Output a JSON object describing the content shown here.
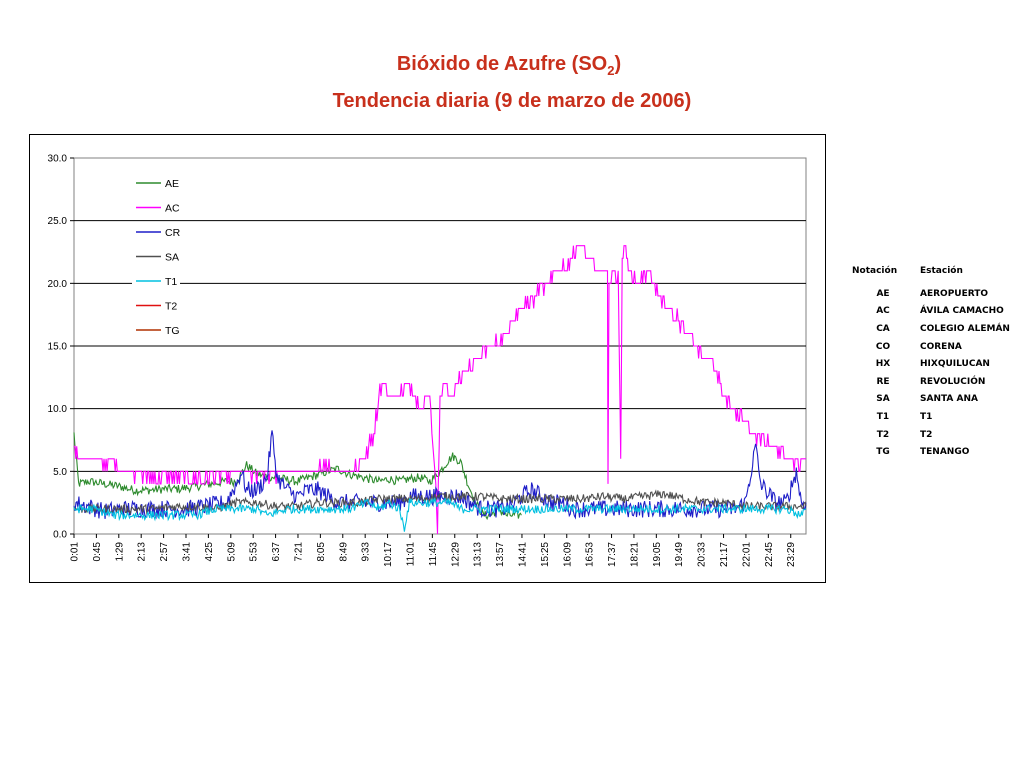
{
  "title": {
    "line1_prefix": "Bióxido de Azufre (SO",
    "line1_sub": "2",
    "line1_suffix": ")",
    "line2": "Tendencia diaria (9 de marzo de 2006)"
  },
  "chart_data": {
    "type": "line",
    "title": "Bióxido de Azufre (SO2) Tendencia diaria (9 de marzo de 2006)",
    "xlabel": "",
    "ylabel": "",
    "ylim": [
      0,
      30
    ],
    "yticks": [
      "0.0",
      "5.0",
      "10.0",
      "15.0",
      "20.0",
      "25.0",
      "30.0"
    ],
    "xtick_labels": [
      "0:01",
      "0:45",
      "1:29",
      "2:13",
      "2:57",
      "3:41",
      "4:25",
      "5:09",
      "5:53",
      "6:37",
      "7:21",
      "8:05",
      "8:49",
      "9:33",
      "10:17",
      "11:01",
      "11:45",
      "12:29",
      "13:13",
      "13:57",
      "14:41",
      "15:25",
      "16:09",
      "16:53",
      "17:37",
      "18:21",
      "19:05",
      "19:49",
      "20:33",
      "21:17",
      "22:01",
      "22:45",
      "23:29"
    ],
    "x_unit": "minutes since 0:00",
    "grid": "horizontal",
    "legend_position": "upper-left",
    "series": [
      {
        "name": "AE",
        "color": "#2e8b2e",
        "points": [
          [
            1,
            8
          ],
          [
            10,
            4
          ],
          [
            30,
            4.2
          ],
          [
            60,
            4
          ],
          [
            90,
            3.8
          ],
          [
            120,
            3.5
          ],
          [
            150,
            3.5
          ],
          [
            180,
            3.6
          ],
          [
            210,
            3.6
          ],
          [
            240,
            3.8
          ],
          [
            270,
            4
          ],
          [
            300,
            4.2
          ],
          [
            320,
            4.2
          ],
          [
            340,
            5.5
          ],
          [
            360,
            4.8
          ],
          [
            380,
            4.6
          ],
          [
            410,
            4.4
          ],
          [
            440,
            4.2
          ],
          [
            470,
            4.6
          ],
          [
            500,
            5
          ],
          [
            520,
            5.2
          ],
          [
            540,
            4.8
          ],
          [
            560,
            4.6
          ],
          [
            580,
            4.4
          ],
          [
            600,
            4.2
          ],
          [
            620,
            4.4
          ],
          [
            640,
            4.2
          ],
          [
            660,
            4.4
          ],
          [
            680,
            4.5
          ],
          [
            700,
            4.2
          ],
          [
            720,
            5
          ],
          [
            735,
            5.8
          ],
          [
            745,
            6.2
          ],
          [
            760,
            5.8
          ],
          [
            775,
            4
          ],
          [
            790,
            2.5
          ],
          [
            805,
            1.5
          ],
          [
            820,
            1.5
          ],
          [
            835,
            2.0
          ],
          [
            850,
            1.5
          ],
          [
            870,
            1.5
          ],
          [
            880,
            1.5
          ]
        ]
      },
      {
        "name": "AC",
        "color": "#ff00ff",
        "points": [
          [
            1,
            7
          ],
          [
            10,
            6
          ],
          [
            40,
            5.8
          ],
          [
            80,
            5.6
          ],
          [
            110,
            5
          ],
          [
            150,
            4.5
          ],
          [
            200,
            4.5
          ],
          [
            250,
            4.5
          ],
          [
            300,
            4.7
          ],
          [
            340,
            4.8
          ],
          [
            380,
            4.8
          ],
          [
            420,
            5
          ],
          [
            460,
            5
          ],
          [
            500,
            5.2
          ],
          [
            520,
            5
          ],
          [
            540,
            5
          ],
          [
            560,
            5.5
          ],
          [
            570,
            6
          ],
          [
            590,
            8
          ],
          [
            600,
            11
          ],
          [
            610,
            12.5
          ],
          [
            620,
            11
          ],
          [
            640,
            11
          ],
          [
            660,
            12
          ],
          [
            670,
            11
          ],
          [
            680,
            10
          ],
          [
            700,
            11
          ],
          [
            710,
            5
          ],
          [
            715,
            0.5
          ],
          [
            720,
            11
          ],
          [
            730,
            12
          ],
          [
            740,
            11
          ],
          [
            760,
            12.5
          ],
          [
            780,
            13.5
          ],
          [
            800,
            14
          ],
          [
            820,
            15
          ],
          [
            840,
            15.5
          ],
          [
            860,
            17
          ],
          [
            880,
            18
          ],
          [
            900,
            18.5
          ],
          [
            920,
            19.5
          ],
          [
            940,
            20.5
          ],
          [
            960,
            21
          ],
          [
            980,
            22
          ],
          [
            1000,
            23.5
          ],
          [
            1010,
            22
          ],
          [
            1020,
            21.5
          ],
          [
            1030,
            21
          ],
          [
            1040,
            21
          ],
          [
            1049,
            21
          ],
          [
            1050,
            4
          ],
          [
            1052,
            20
          ],
          [
            1060,
            21
          ],
          [
            1070,
            20.5
          ],
          [
            1075,
            6
          ],
          [
            1078,
            22
          ],
          [
            1085,
            23
          ],
          [
            1090,
            21
          ],
          [
            1110,
            20
          ],
          [
            1130,
            21
          ],
          [
            1150,
            19
          ],
          [
            1170,
            18
          ],
          [
            1190,
            17
          ],
          [
            1210,
            16
          ],
          [
            1230,
            14.5
          ],
          [
            1250,
            14
          ],
          [
            1270,
            12
          ],
          [
            1290,
            10
          ],
          [
            1310,
            9.5
          ],
          [
            1330,
            8
          ],
          [
            1350,
            7.5
          ],
          [
            1370,
            7
          ],
          [
            1390,
            6.5
          ],
          [
            1410,
            6
          ],
          [
            1425,
            5.5
          ],
          [
            1439,
            6
          ]
        ]
      },
      {
        "name": "CR",
        "color": "#1e1ec8",
        "points": [
          [
            1,
            2.5
          ],
          [
            30,
            2.2
          ],
          [
            60,
            1.8
          ],
          [
            100,
            2
          ],
          [
            140,
            2
          ],
          [
            180,
            2
          ],
          [
            220,
            2
          ],
          [
            260,
            2.2
          ],
          [
            300,
            2.5
          ],
          [
            320,
            4
          ],
          [
            330,
            5
          ],
          [
            340,
            3.5
          ],
          [
            360,
            3.5
          ],
          [
            380,
            4.5
          ],
          [
            390,
            8
          ],
          [
            400,
            4.5
          ],
          [
            420,
            3.5
          ],
          [
            440,
            3
          ],
          [
            460,
            3.5
          ],
          [
            480,
            3.5
          ],
          [
            500,
            3
          ],
          [
            520,
            2.5
          ],
          [
            540,
            2.5
          ],
          [
            560,
            2.5
          ],
          [
            580,
            2.5
          ],
          [
            600,
            2.5
          ],
          [
            620,
            2.5
          ],
          [
            640,
            2.5
          ],
          [
            660,
            3
          ],
          [
            680,
            3
          ],
          [
            700,
            3
          ],
          [
            720,
            3
          ],
          [
            740,
            3
          ],
          [
            760,
            3
          ],
          [
            780,
            2.5
          ],
          [
            800,
            2
          ],
          [
            820,
            2
          ],
          [
            840,
            2
          ],
          [
            860,
            2.2
          ],
          [
            880,
            3
          ],
          [
            900,
            3.5
          ],
          [
            920,
            3
          ],
          [
            940,
            2.5
          ],
          [
            960,
            2.5
          ],
          [
            980,
            2
          ],
          [
            1000,
            2
          ],
          [
            1020,
            2
          ],
          [
            1040,
            2
          ],
          [
            1060,
            2
          ],
          [
            1080,
            2
          ],
          [
            1100,
            2
          ],
          [
            1120,
            2
          ],
          [
            1140,
            2
          ],
          [
            1160,
            2
          ],
          [
            1180,
            2
          ],
          [
            1200,
            2
          ],
          [
            1220,
            2
          ],
          [
            1240,
            2
          ],
          [
            1260,
            2
          ],
          [
            1280,
            2
          ],
          [
            1300,
            2
          ],
          [
            1320,
            2.5
          ],
          [
            1340,
            7
          ],
          [
            1350,
            4
          ],
          [
            1360,
            3.5
          ],
          [
            1380,
            2.5
          ],
          [
            1400,
            2.5
          ],
          [
            1420,
            5
          ],
          [
            1430,
            2.5
          ],
          [
            1439,
            2.5
          ]
        ]
      },
      {
        "name": "SA",
        "color": "#505050",
        "points": [
          [
            1,
            2
          ],
          [
            40,
            2
          ],
          [
            80,
            2
          ],
          [
            120,
            2
          ],
          [
            160,
            2
          ],
          [
            200,
            2.2
          ],
          [
            240,
            2.2
          ],
          [
            280,
            2
          ],
          [
            320,
            2.5
          ],
          [
            360,
            2.5
          ],
          [
            400,
            2.2
          ],
          [
            440,
            2.2
          ],
          [
            480,
            2.5
          ],
          [
            520,
            2.5
          ],
          [
            560,
            2.5
          ],
          [
            600,
            2.8
          ],
          [
            640,
            2.8
          ],
          [
            680,
            2.8
          ],
          [
            720,
            3
          ],
          [
            760,
            3
          ],
          [
            800,
            3
          ],
          [
            840,
            2.8
          ],
          [
            880,
            2.8
          ],
          [
            920,
            2.8
          ],
          [
            960,
            2.8
          ],
          [
            1000,
            2.8
          ],
          [
            1040,
            3
          ],
          [
            1080,
            2.8
          ],
          [
            1120,
            3
          ],
          [
            1160,
            3.2
          ],
          [
            1200,
            2.8
          ],
          [
            1240,
            2.5
          ],
          [
            1280,
            2.5
          ],
          [
            1320,
            2.2
          ],
          [
            1360,
            2.2
          ],
          [
            1400,
            2.2
          ],
          [
            1439,
            2.2
          ]
        ]
      },
      {
        "name": "T1",
        "color": "#00c0e0",
        "points": [
          [
            1,
            2
          ],
          [
            40,
            2
          ],
          [
            80,
            1.5
          ],
          [
            120,
            1.5
          ],
          [
            160,
            1.5
          ],
          [
            200,
            1.5
          ],
          [
            240,
            1.5
          ],
          [
            280,
            2
          ],
          [
            320,
            2
          ],
          [
            360,
            2
          ],
          [
            380,
            1.5
          ],
          [
            420,
            2
          ],
          [
            460,
            2
          ],
          [
            500,
            2
          ],
          [
            540,
            2
          ],
          [
            580,
            2.5
          ],
          [
            600,
            2
          ],
          [
            620,
            2.5
          ],
          [
            640,
            2
          ],
          [
            650,
            0.5
          ],
          [
            660,
            2.5
          ],
          [
            700,
            2.5
          ],
          [
            740,
            2.5
          ],
          [
            760,
            2
          ],
          [
            800,
            2
          ],
          [
            840,
            2
          ],
          [
            880,
            2
          ],
          [
            920,
            2
          ],
          [
            960,
            2
          ],
          [
            1000,
            2
          ],
          [
            1040,
            2
          ],
          [
            1080,
            2
          ],
          [
            1120,
            2
          ],
          [
            1160,
            2
          ],
          [
            1200,
            2
          ],
          [
            1240,
            2
          ],
          [
            1280,
            2
          ],
          [
            1320,
            2
          ],
          [
            1360,
            2
          ],
          [
            1400,
            2
          ],
          [
            1430,
            1.5
          ],
          [
            1439,
            2
          ]
        ]
      },
      {
        "name": "T2",
        "color": "#e01010",
        "points": []
      },
      {
        "name": "TG",
        "color": "#b03000",
        "points": []
      }
    ]
  },
  "stations": {
    "header_notation": "Notación",
    "header_station": "Estación",
    "rows": [
      {
        "code": "AE",
        "name": "AEROPUERTO"
      },
      {
        "code": "AC",
        "name": "ÁVILA CAMACHO"
      },
      {
        "code": "CA",
        "name": "COLEGIO ALEMÁN"
      },
      {
        "code": "CO",
        "name": "CORENA"
      },
      {
        "code": "HX",
        "name": "HIXQUILUCAN"
      },
      {
        "code": "RE",
        "name": "REVOLUCIÓN"
      },
      {
        "code": "SA",
        "name": "SANTA ANA"
      },
      {
        "code": "T1",
        "name": "T1"
      },
      {
        "code": "T2",
        "name": "T2"
      },
      {
        "code": "TG",
        "name": "TENANGO"
      }
    ]
  }
}
